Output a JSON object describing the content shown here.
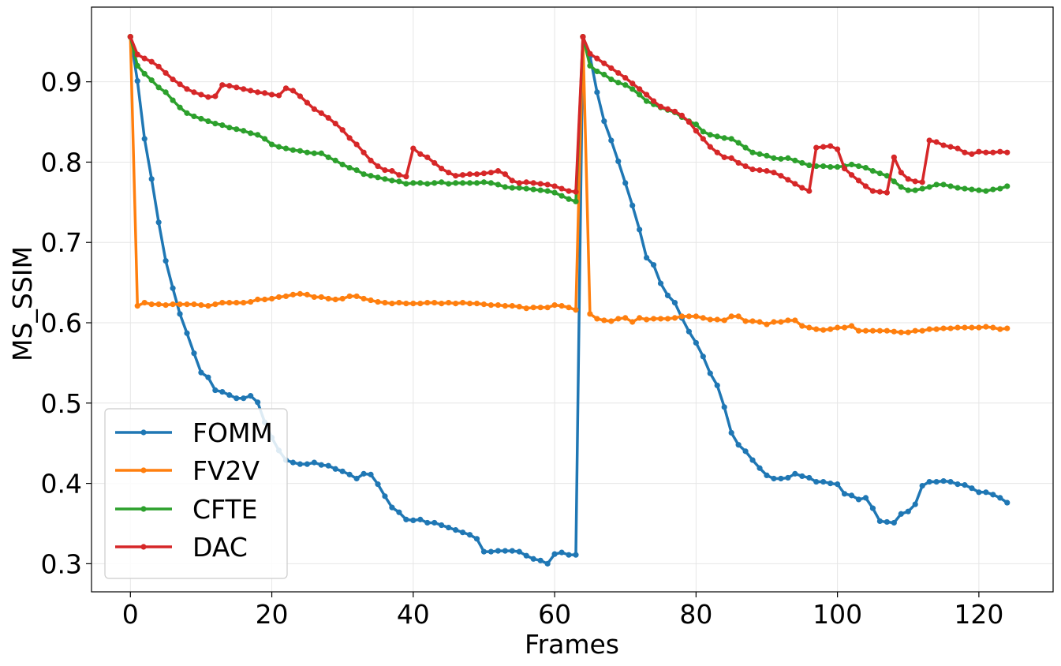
{
  "chart_data": {
    "type": "line",
    "title": "",
    "xlabel": "Frames",
    "ylabel": "MS_SSIM",
    "xlim": [
      -5.5,
      130.5
    ],
    "ylim": [
      0.265,
      0.993
    ],
    "xticks": [
      0,
      20,
      40,
      60,
      80,
      100,
      120
    ],
    "xtick_labels": [
      "0",
      "20",
      "40",
      "60",
      "80",
      "100",
      "120"
    ],
    "yticks": [
      0.3,
      0.4,
      0.5,
      0.6,
      0.7,
      0.8,
      0.9
    ],
    "ytick_labels": [
      "0.3",
      "0.4",
      "0.5",
      "0.6",
      "0.7",
      "0.8",
      "0.9"
    ],
    "grid": true,
    "legend_position": "lower-left",
    "series": [
      {
        "name": "FOMM",
        "color": "#1f77b4",
        "values": [
          0.956,
          0.901,
          0.829,
          0.779,
          0.725,
          0.677,
          0.643,
          0.611,
          0.587,
          0.562,
          0.538,
          0.532,
          0.516,
          0.514,
          0.51,
          0.506,
          0.506,
          0.509,
          0.501,
          0.476,
          0.457,
          0.441,
          0.429,
          0.426,
          0.424,
          0.424,
          0.426,
          0.423,
          0.422,
          0.418,
          0.415,
          0.411,
          0.406,
          0.412,
          0.411,
          0.399,
          0.384,
          0.37,
          0.364,
          0.355,
          0.354,
          0.355,
          0.351,
          0.351,
          0.348,
          0.345,
          0.342,
          0.339,
          0.336,
          0.331,
          0.315,
          0.315,
          0.316,
          0.316,
          0.316,
          0.315,
          0.31,
          0.306,
          0.304,
          0.3,
          0.312,
          0.314,
          0.311,
          0.311,
          0.956,
          0.932,
          0.887,
          0.851,
          0.827,
          0.801,
          0.774,
          0.746,
          0.716,
          0.681,
          0.672,
          0.649,
          0.634,
          0.625,
          0.606,
          0.589,
          0.575,
          0.558,
          0.537,
          0.522,
          0.495,
          0.463,
          0.448,
          0.44,
          0.429,
          0.419,
          0.41,
          0.406,
          0.406,
          0.407,
          0.412,
          0.409,
          0.407,
          0.402,
          0.402,
          0.4,
          0.399,
          0.387,
          0.385,
          0.38,
          0.382,
          0.369,
          0.353,
          0.352,
          0.351,
          0.362,
          0.365,
          0.374,
          0.397,
          0.402,
          0.402,
          0.403,
          0.402,
          0.399,
          0.398,
          0.394,
          0.389,
          0.389,
          0.386,
          0.382,
          0.376
        ]
      },
      {
        "name": "FV2V",
        "color": "#ff7f0e",
        "values": [
          0.956,
          0.621,
          0.625,
          0.623,
          0.623,
          0.622,
          0.623,
          0.623,
          0.623,
          0.623,
          0.622,
          0.621,
          0.623,
          0.625,
          0.625,
          0.625,
          0.625,
          0.626,
          0.629,
          0.629,
          0.63,
          0.632,
          0.633,
          0.635,
          0.636,
          0.635,
          0.632,
          0.632,
          0.63,
          0.629,
          0.63,
          0.633,
          0.633,
          0.63,
          0.628,
          0.626,
          0.625,
          0.624,
          0.625,
          0.624,
          0.624,
          0.624,
          0.625,
          0.625,
          0.624,
          0.625,
          0.624,
          0.625,
          0.624,
          0.624,
          0.623,
          0.622,
          0.622,
          0.621,
          0.621,
          0.62,
          0.618,
          0.619,
          0.619,
          0.619,
          0.622,
          0.621,
          0.619,
          0.616,
          0.956,
          0.611,
          0.605,
          0.603,
          0.602,
          0.605,
          0.606,
          0.601,
          0.606,
          0.604,
          0.605,
          0.605,
          0.605,
          0.606,
          0.608,
          0.608,
          0.608,
          0.606,
          0.604,
          0.604,
          0.603,
          0.608,
          0.608,
          0.602,
          0.602,
          0.601,
          0.598,
          0.601,
          0.601,
          0.603,
          0.603,
          0.596,
          0.594,
          0.592,
          0.591,
          0.592,
          0.594,
          0.594,
          0.596,
          0.59,
          0.59,
          0.59,
          0.59,
          0.59,
          0.589,
          0.588,
          0.588,
          0.59,
          0.59,
          0.592,
          0.592,
          0.593,
          0.593,
          0.594,
          0.594,
          0.594,
          0.594,
          0.595,
          0.594,
          0.592,
          0.593
        ]
      },
      {
        "name": "CFTE",
        "color": "#2ca02c",
        "values": [
          0.956,
          0.92,
          0.91,
          0.902,
          0.893,
          0.887,
          0.877,
          0.868,
          0.861,
          0.857,
          0.854,
          0.851,
          0.848,
          0.846,
          0.843,
          0.841,
          0.839,
          0.836,
          0.834,
          0.829,
          0.822,
          0.819,
          0.817,
          0.815,
          0.814,
          0.812,
          0.811,
          0.811,
          0.806,
          0.802,
          0.797,
          0.793,
          0.79,
          0.785,
          0.783,
          0.781,
          0.779,
          0.777,
          0.776,
          0.773,
          0.774,
          0.774,
          0.773,
          0.774,
          0.775,
          0.773,
          0.774,
          0.774,
          0.774,
          0.774,
          0.775,
          0.774,
          0.772,
          0.769,
          0.768,
          0.768,
          0.767,
          0.766,
          0.765,
          0.764,
          0.762,
          0.758,
          0.754,
          0.751,
          0.956,
          0.92,
          0.913,
          0.909,
          0.903,
          0.899,
          0.896,
          0.891,
          0.884,
          0.876,
          0.872,
          0.868,
          0.865,
          0.862,
          0.856,
          0.851,
          0.847,
          0.838,
          0.834,
          0.832,
          0.83,
          0.829,
          0.824,
          0.818,
          0.812,
          0.81,
          0.808,
          0.805,
          0.804,
          0.805,
          0.802,
          0.799,
          0.796,
          0.795,
          0.795,
          0.794,
          0.794,
          0.795,
          0.797,
          0.795,
          0.793,
          0.789,
          0.786,
          0.783,
          0.776,
          0.769,
          0.765,
          0.765,
          0.767,
          0.769,
          0.772,
          0.772,
          0.77,
          0.768,
          0.767,
          0.766,
          0.765,
          0.764,
          0.766,
          0.767,
          0.77
        ]
      },
      {
        "name": "DAC",
        "color": "#d62728",
        "values": [
          0.956,
          0.934,
          0.929,
          0.925,
          0.919,
          0.911,
          0.903,
          0.897,
          0.891,
          0.887,
          0.884,
          0.881,
          0.882,
          0.896,
          0.895,
          0.893,
          0.891,
          0.889,
          0.887,
          0.886,
          0.884,
          0.883,
          0.892,
          0.889,
          0.882,
          0.874,
          0.866,
          0.861,
          0.855,
          0.848,
          0.84,
          0.83,
          0.822,
          0.812,
          0.802,
          0.795,
          0.79,
          0.789,
          0.784,
          0.782,
          0.817,
          0.81,
          0.806,
          0.799,
          0.792,
          0.787,
          0.783,
          0.784,
          0.785,
          0.785,
          0.786,
          0.787,
          0.789,
          0.785,
          0.777,
          0.774,
          0.775,
          0.774,
          0.773,
          0.772,
          0.77,
          0.767,
          0.764,
          0.763,
          0.956,
          0.935,
          0.929,
          0.923,
          0.917,
          0.911,
          0.905,
          0.898,
          0.891,
          0.884,
          0.876,
          0.869,
          0.866,
          0.863,
          0.858,
          0.85,
          0.839,
          0.829,
          0.819,
          0.812,
          0.806,
          0.805,
          0.799,
          0.795,
          0.791,
          0.79,
          0.789,
          0.787,
          0.783,
          0.778,
          0.773,
          0.768,
          0.764,
          0.818,
          0.819,
          0.82,
          0.816,
          0.792,
          0.784,
          0.777,
          0.77,
          0.764,
          0.763,
          0.762,
          0.806,
          0.787,
          0.779,
          0.776,
          0.775,
          0.827,
          0.825,
          0.821,
          0.819,
          0.817,
          0.812,
          0.81,
          0.813,
          0.812,
          0.812,
          0.813,
          0.812
        ]
      }
    ]
  }
}
